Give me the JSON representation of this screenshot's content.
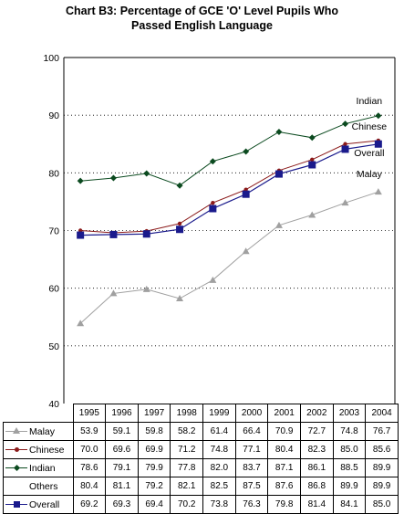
{
  "chart_data": {
    "type": "line",
    "title_line1": "Chart B3: Percentage of GCE 'O' Level Pupils Who",
    "title_line2": "Passed English Language",
    "categories": [
      "1995",
      "1996",
      "1997",
      "1998",
      "1999",
      "2000",
      "2001",
      "2002",
      "2003",
      "2004"
    ],
    "ylim": [
      40,
      100
    ],
    "yticks": [
      40,
      50,
      60,
      70,
      80,
      90,
      100
    ],
    "grid": "horizontal dotted",
    "series": [
      {
        "name": "Malay",
        "values": [
          53.9,
          59.1,
          59.8,
          58.2,
          61.4,
          66.4,
          70.9,
          72.7,
          74.8,
          76.7
        ],
        "color": "#a0a0a0",
        "marker": "triangle",
        "plotted": true
      },
      {
        "name": "Chinese",
        "values": [
          70.0,
          69.6,
          69.9,
          71.2,
          74.8,
          77.1,
          80.4,
          82.3,
          85.0,
          85.6
        ],
        "color": "#8b1a1a",
        "marker": "dot",
        "plotted": true
      },
      {
        "name": "Indian",
        "values": [
          78.6,
          79.1,
          79.9,
          77.8,
          82.0,
          83.7,
          87.1,
          86.1,
          88.5,
          89.9
        ],
        "color": "#0b4a1f",
        "marker": "diamond",
        "plotted": true
      },
      {
        "name": "Others",
        "values": [
          80.4,
          81.1,
          79.2,
          82.1,
          82.5,
          87.5,
          87.6,
          86.8,
          89.9,
          89.9
        ],
        "color": "#ffffff",
        "marker": "none",
        "plotted": false
      },
      {
        "name": "Overall",
        "values": [
          69.2,
          69.3,
          69.4,
          70.2,
          73.8,
          76.3,
          79.8,
          81.4,
          84.1,
          85.0
        ],
        "color": "#1a1a8c",
        "marker": "square",
        "plotted": true
      }
    ],
    "annotations": [
      {
        "text": "Indian",
        "series": "Indian"
      },
      {
        "text": "Chinese",
        "series": "Chinese"
      },
      {
        "text": "Overall",
        "series": "Overall"
      },
      {
        "text": "Malay",
        "series": "Malay"
      }
    ]
  }
}
